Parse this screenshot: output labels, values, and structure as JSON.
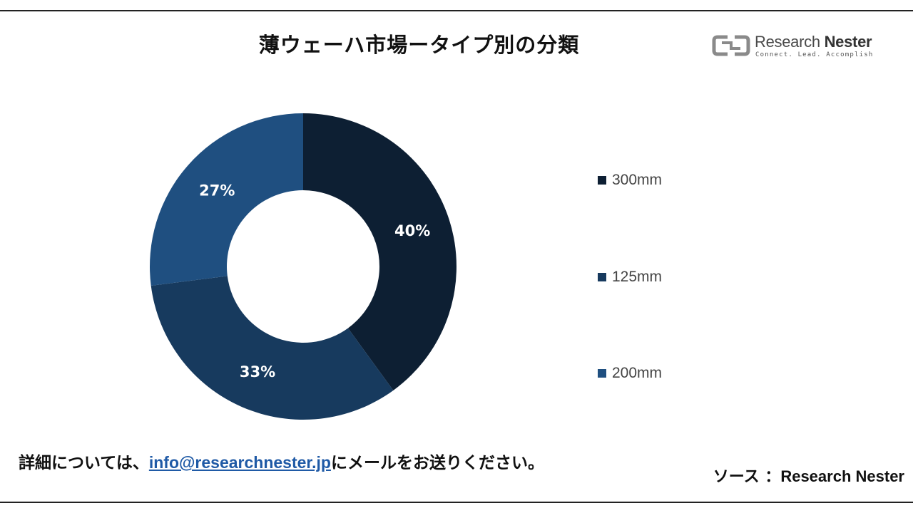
{
  "title": "薄ウェーハ市場ータイプ別の分類",
  "logo": {
    "name_light": "Research ",
    "name_bold": "Nester",
    "tagline": "Connect. Lead. Accomplish"
  },
  "chart_data": {
    "type": "pie",
    "donut": true,
    "title": "薄ウェーハ市場ータイプ別の分類",
    "categories": [
      "300mm",
      "125mm",
      "200mm"
    ],
    "values": [
      40,
      33,
      27
    ],
    "data_labels": [
      "40%",
      "33%",
      "27%"
    ],
    "colors": [
      "#0d1f33",
      "#173a5e",
      "#1f4f80"
    ],
    "legend_position": "right"
  },
  "footer": {
    "prefix": "詳細については、",
    "email": "info@researchnester.jp",
    "suffix": "にメールをお送りください。"
  },
  "source": {
    "label": "ソース",
    "separator": "：",
    "name": "Research Nester"
  }
}
